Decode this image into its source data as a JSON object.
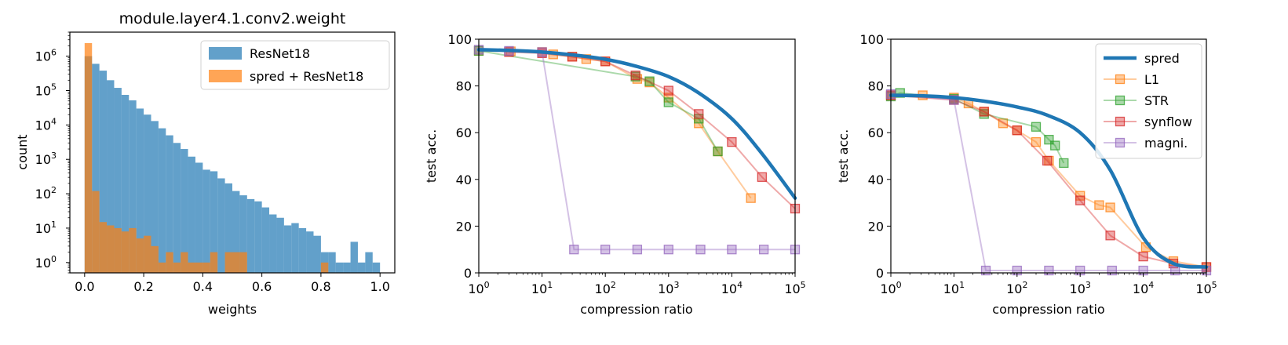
{
  "colors": {
    "resnet": "#1f77b4",
    "spred_hist": "#ff7f0e",
    "spred_line": "#1f77b4",
    "l1": "#ff7f0e",
    "str": "#2ca02c",
    "synflow": "#d62728",
    "magni": "#9467bd"
  },
  "chart_data": [
    {
      "type": "bar",
      "title": "module.layer4.1.conv2.weight",
      "xlabel": "weights",
      "ylabel": "count",
      "yscale": "log",
      "xlim": [
        -0.05,
        1.05
      ],
      "ylim": [
        0.5,
        5000000
      ],
      "x_ticks": [
        0.0,
        0.2,
        0.4,
        0.6,
        0.8,
        1.0
      ],
      "x_tick_labels": [
        "0.0",
        "0.2",
        "0.4",
        "0.6",
        "0.8",
        "1.0"
      ],
      "y_ticks": [
        1,
        10,
        100,
        1000,
        10000,
        100000,
        1000000
      ],
      "y_tick_labels": [
        {
          "base": "10",
          "exp": "0"
        },
        {
          "base": "10",
          "exp": "1"
        },
        {
          "base": "10",
          "exp": "2"
        },
        {
          "base": "10",
          "exp": "3"
        },
        {
          "base": "10",
          "exp": "4"
        },
        {
          "base": "10",
          "exp": "5"
        },
        {
          "base": "10",
          "exp": "6"
        }
      ],
      "bin_start": 0.0,
      "bin_width": 0.025,
      "legend": [
        "ResNet18",
        "spred + ResNet18"
      ],
      "legend_position": "top-right",
      "series": [
        {
          "name": "ResNet18",
          "values": [
            1000000,
            600000,
            380000,
            200000,
            120000,
            75000,
            52000,
            30000,
            20000,
            13000,
            8000,
            5000,
            3000,
            2000,
            1200,
            800,
            500,
            450,
            280,
            200,
            120,
            90,
            70,
            60,
            40,
            25,
            20,
            12,
            14,
            10,
            8,
            6,
            2,
            2,
            1,
            1,
            4,
            1,
            2,
            1
          ]
        },
        {
          "name": "spred + ResNet18",
          "values": [
            2400000,
            120,
            15,
            12,
            10,
            8,
            10,
            5,
            6,
            3,
            1,
            2,
            1,
            2,
            1,
            1,
            1,
            2,
            0,
            2,
            2,
            2,
            0,
            0,
            0,
            0,
            0,
            0,
            0,
            0,
            0,
            0,
            1,
            0,
            0,
            0,
            0,
            0,
            0,
            0
          ]
        }
      ]
    },
    {
      "type": "line",
      "xlabel": "compression ratio",
      "ylabel": "test acc.",
      "xscale": "log",
      "xlim": [
        1,
        100000
      ],
      "ylim": [
        0,
        100
      ],
      "x_ticks": [
        1,
        10,
        100,
        1000,
        10000,
        100000
      ],
      "x_tick_labels": [
        {
          "base": "10",
          "exp": "0"
        },
        {
          "base": "10",
          "exp": "1"
        },
        {
          "base": "10",
          "exp": "2"
        },
        {
          "base": "10",
          "exp": "3"
        },
        {
          "base": "10",
          "exp": "4"
        },
        {
          "base": "10",
          "exp": "5"
        }
      ],
      "y_ticks": [
        0,
        20,
        40,
        60,
        80,
        100
      ],
      "y_tick_labels": [
        "0",
        "20",
        "40",
        "60",
        "80",
        "100"
      ],
      "series": [
        {
          "name": "spred",
          "x": [
            1,
            3,
            10,
            30,
            100,
            300,
            1000,
            3000,
            10000,
            30000,
            100000
          ],
          "y": [
            95.5,
            95.2,
            94.5,
            93.3,
            91.4,
            88.5,
            84,
            77,
            66,
            51,
            32
          ]
        },
        {
          "name": "L1",
          "x": [
            1,
            3.2,
            10,
            15,
            30,
            50,
            100,
            320,
            500,
            1000,
            3000,
            6000,
            20000
          ],
          "y": [
            95,
            94.8,
            94.5,
            93.5,
            92.5,
            91.5,
            90.5,
            83,
            81.5,
            75,
            64,
            52,
            32
          ]
        },
        {
          "name": "STR",
          "x": [
            1,
            300,
            500,
            1000,
            3000,
            6000
          ],
          "y": [
            95,
            84,
            82,
            73,
            66,
            52
          ]
        },
        {
          "name": "synflow",
          "x": [
            3,
            10,
            30,
            100,
            300,
            1000,
            3000,
            10000,
            30000,
            100000
          ],
          "y": [
            94.5,
            94,
            92.5,
            90.5,
            84.5,
            78,
            68,
            56,
            41,
            27.5
          ]
        },
        {
          "name": "magni.",
          "x": [
            1,
            3,
            10,
            32,
            100,
            320,
            1000,
            3200,
            10000,
            32000,
            100000
          ],
          "y": [
            95.5,
            95,
            94.5,
            10,
            10,
            10,
            10,
            10,
            10,
            10,
            10
          ]
        }
      ]
    },
    {
      "type": "line",
      "xlabel": "compression ratio",
      "ylabel": "test acc.",
      "xscale": "log",
      "xlim": [
        1,
        100000
      ],
      "ylim": [
        0,
        100
      ],
      "x_ticks": [
        1,
        10,
        100,
        1000,
        10000,
        100000
      ],
      "x_tick_labels": [
        {
          "base": "10",
          "exp": "0"
        },
        {
          "base": "10",
          "exp": "1"
        },
        {
          "base": "10",
          "exp": "2"
        },
        {
          "base": "10",
          "exp": "3"
        },
        {
          "base": "10",
          "exp": "4"
        },
        {
          "base": "10",
          "exp": "5"
        }
      ],
      "y_ticks": [
        0,
        20,
        40,
        60,
        80,
        100
      ],
      "y_tick_labels": [
        "0",
        "20",
        "40",
        "60",
        "80",
        "100"
      ],
      "legend": [
        "spred",
        "L1",
        "STR",
        "synflow",
        "magni."
      ],
      "legend_position": "top-right",
      "series": [
        {
          "name": "spred",
          "x": [
            1,
            3,
            10,
            30,
            100,
            300,
            1000,
            3000,
            10000,
            30000,
            100000
          ],
          "y": [
            76,
            75.8,
            75,
            73.5,
            71,
            67.5,
            60,
            44,
            15,
            4,
            2.5
          ]
        },
        {
          "name": "L1",
          "x": [
            1,
            3.2,
            10,
            17,
            30,
            60,
            100,
            200,
            320,
            1000,
            2000,
            3000,
            11000,
            30000,
            100000
          ],
          "y": [
            76,
            76,
            75,
            72.5,
            69,
            64,
            61,
            56,
            48,
            33,
            29,
            28,
            11,
            5,
            2.5
          ]
        },
        {
          "name": "STR",
          "x": [
            1,
            1.4,
            10,
            30,
            200,
            320,
            400,
            550
          ],
          "y": [
            75.5,
            77,
            74.5,
            68,
            62.5,
            57,
            54.5,
            47
          ]
        },
        {
          "name": "synflow",
          "x": [
            1,
            10,
            30,
            100,
            300,
            1000,
            3000,
            10000,
            30000,
            100000
          ],
          "y": [
            76,
            74,
            69,
            61,
            48,
            31,
            16,
            7,
            4,
            2.5
          ]
        },
        {
          "name": "magni.",
          "x": [
            1,
            10,
            32,
            100,
            320,
            1000,
            3200,
            10000,
            32000,
            100000
          ],
          "y": [
            76.5,
            74,
            1,
            1,
            1,
            1,
            1,
            1,
            1,
            1
          ]
        }
      ]
    }
  ]
}
